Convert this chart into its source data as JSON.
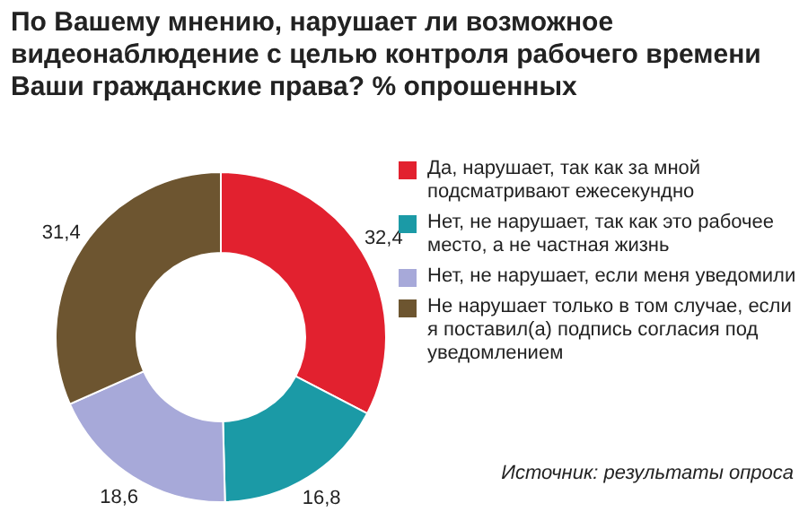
{
  "chart_data": {
    "type": "donut",
    "title": "По Вашему мнению, нарушает ли возможное видеонаблюдение с целью контроля рабочего времени Ваши гражданские права? % опрошенных",
    "categories": [
      "Да, нарушает, так как за мной подсматривают ежесекундно",
      "Нет, не нарушает, так как это рабочее место, а не частная жизнь",
      "Нет, не нарушает, если меня уведомили",
      "Не нарушает только в том случае, если я поставил(а) подпись согласия под уведомлением"
    ],
    "values": [
      32.4,
      16.8,
      18.6,
      31.4
    ],
    "value_labels": [
      "32,4",
      "16,8",
      "18,6",
      "31,4"
    ],
    "colors": [
      "#e2212f",
      "#1b9aa6",
      "#a7a9d9",
      "#6d5530"
    ],
    "legend": "right",
    "annotations": [
      "Источник: результаты опроса"
    ]
  }
}
